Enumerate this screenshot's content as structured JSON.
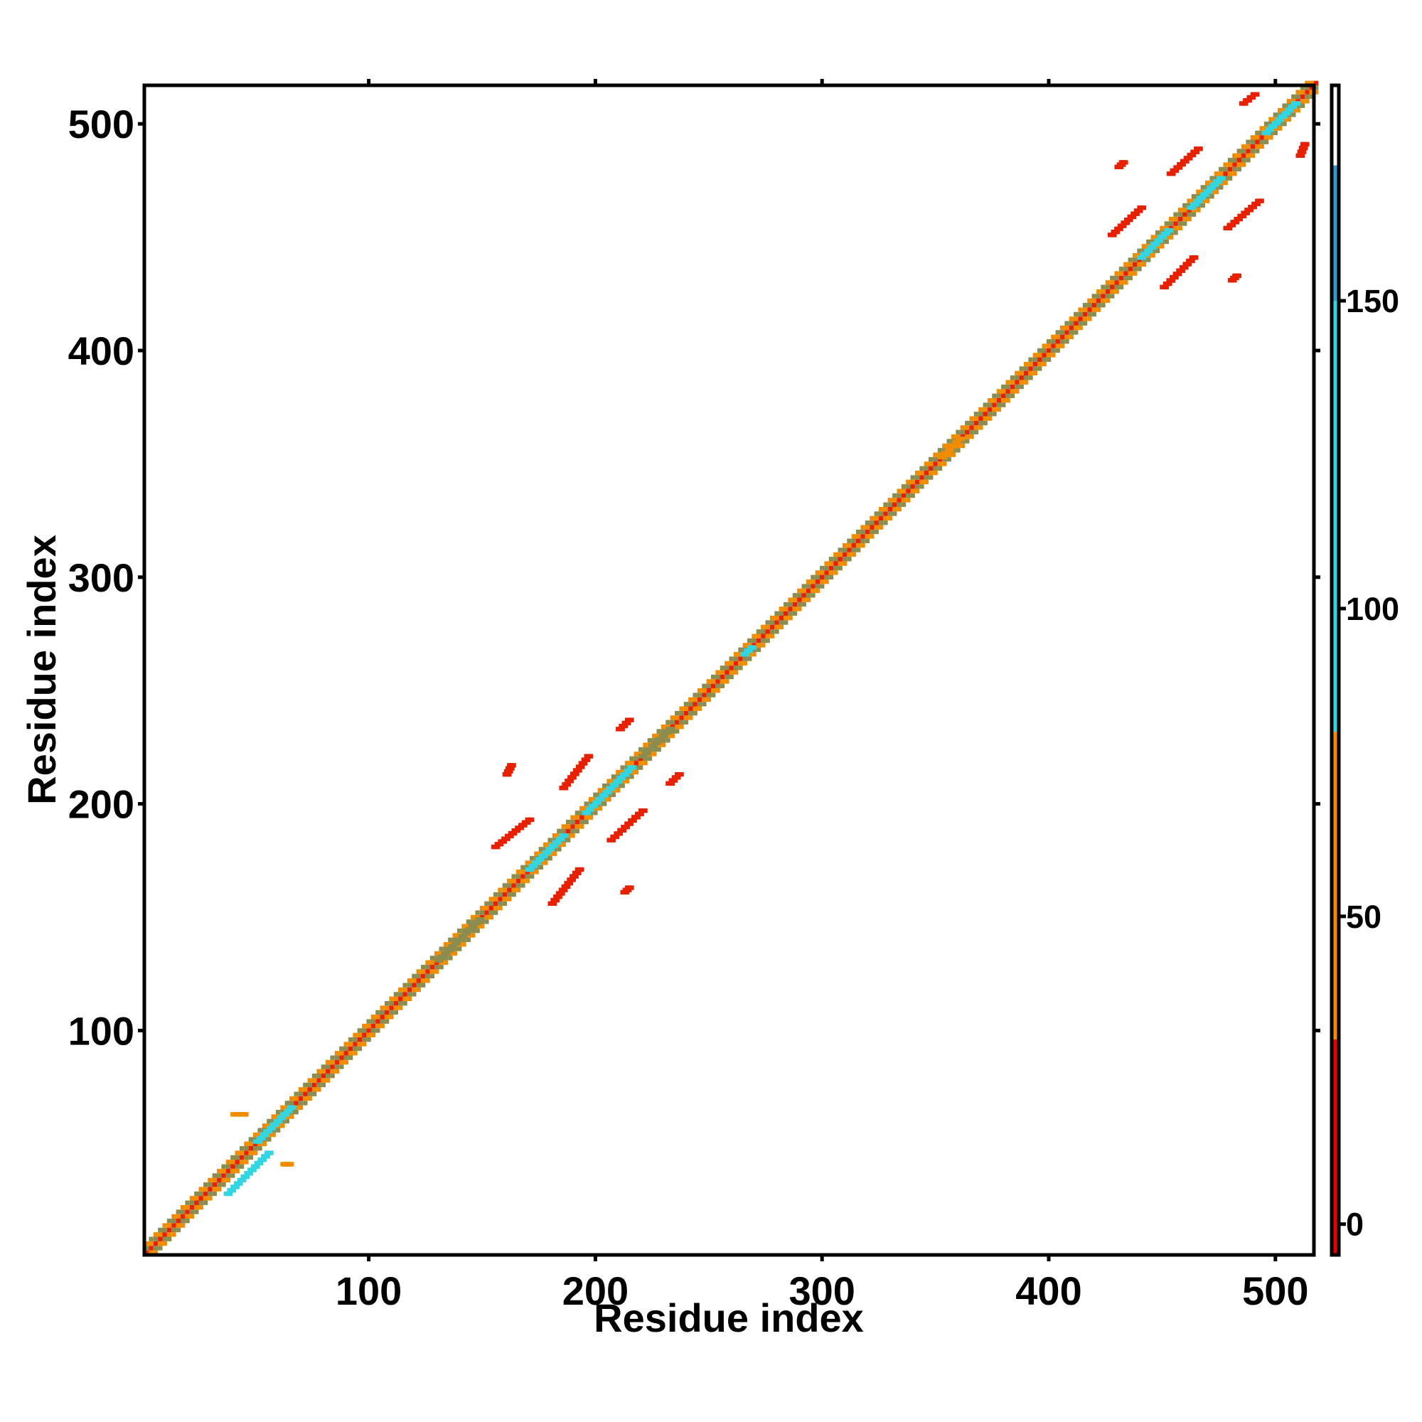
{
  "chart_data": {
    "type": "heatmap",
    "title": "",
    "xlabel": "Residue index",
    "ylabel": "Residue index",
    "xlim": [
      1,
      517
    ],
    "ylim": [
      1,
      517
    ],
    "xticks": [
      100,
      200,
      300,
      400,
      500
    ],
    "yticks": [
      100,
      200,
      300,
      400,
      500
    ],
    "grid": false,
    "legend": "colorbar-right",
    "colorbar": {
      "range": [
        -5,
        185
      ],
      "ticks": [
        0,
        50,
        100,
        150
      ],
      "bands": [
        {
          "from": -5,
          "to": 30,
          "color": "#e60000"
        },
        {
          "from": 30,
          "to": 80,
          "color": "#f08c00"
        },
        {
          "from": 80,
          "to": 150,
          "color": "#33d6e0"
        },
        {
          "from": 150,
          "to": 172,
          "color": "#3399cc"
        },
        {
          "from": 172,
          "to": 185,
          "color": "#ffffff"
        }
      ]
    },
    "palette": {
      "diagonal": "#9a9a55",
      "red": "#e62000",
      "orange": "#f08c00",
      "cyan": "#33d6e0",
      "olive": "#8c8c4e"
    },
    "diagonal_band": {
      "from": 1,
      "to": 517,
      "half_width": 4
    },
    "clusters": [
      {
        "x1": 37,
        "y1": 27,
        "x2": 55,
        "y2": 45,
        "color": "cyan"
      },
      {
        "x1": 50,
        "y1": 50,
        "x2": 65,
        "y2": 65,
        "color": "cyan"
      },
      {
        "x1": 40,
        "y1": 62,
        "x2": 44,
        "y2": 62,
        "color": "orange"
      },
      {
        "x1": 62,
        "y1": 40,
        "x2": 64,
        "y2": 40,
        "color": "orange"
      },
      {
        "x1": 130,
        "y1": 130,
        "x2": 148,
        "y2": 148,
        "color": "olive"
      },
      {
        "x1": 155,
        "y1": 180,
        "x2": 170,
        "y2": 192,
        "color": "red"
      },
      {
        "x1": 180,
        "y1": 155,
        "x2": 192,
        "y2": 170,
        "color": "red"
      },
      {
        "x1": 185,
        "y1": 206,
        "x2": 196,
        "y2": 220,
        "color": "red"
      },
      {
        "x1": 206,
        "y1": 183,
        "x2": 220,
        "y2": 196,
        "color": "red"
      },
      {
        "x1": 210,
        "y1": 232,
        "x2": 214,
        "y2": 236,
        "color": "red"
      },
      {
        "x1": 232,
        "y1": 208,
        "x2": 236,
        "y2": 212,
        "color": "red"
      },
      {
        "x1": 160,
        "y1": 212,
        "x2": 162,
        "y2": 216,
        "color": "red"
      },
      {
        "x1": 212,
        "y1": 160,
        "x2": 214,
        "y2": 162,
        "color": "red"
      },
      {
        "x1": 170,
        "y1": 170,
        "x2": 185,
        "y2": 185,
        "color": "cyan"
      },
      {
        "x1": 195,
        "y1": 195,
        "x2": 215,
        "y2": 215,
        "color": "cyan"
      },
      {
        "x1": 220,
        "y1": 220,
        "x2": 232,
        "y2": 232,
        "color": "olive"
      },
      {
        "x1": 265,
        "y1": 265,
        "x2": 268,
        "y2": 268,
        "color": "cyan"
      },
      {
        "x1": 352,
        "y1": 352,
        "x2": 360,
        "y2": 360,
        "color": "orange"
      },
      {
        "x1": 427,
        "y1": 450,
        "x2": 440,
        "y2": 462,
        "color": "red"
      },
      {
        "x1": 450,
        "y1": 427,
        "x2": 463,
        "y2": 440,
        "color": "red"
      },
      {
        "x1": 453,
        "y1": 477,
        "x2": 465,
        "y2": 488,
        "color": "red"
      },
      {
        "x1": 478,
        "y1": 453,
        "x2": 492,
        "y2": 465,
        "color": "red"
      },
      {
        "x1": 485,
        "y1": 508,
        "x2": 490,
        "y2": 512,
        "color": "red"
      },
      {
        "x1": 510,
        "y1": 485,
        "x2": 512,
        "y2": 490,
        "color": "red"
      },
      {
        "x1": 430,
        "y1": 480,
        "x2": 432,
        "y2": 482,
        "color": "red"
      },
      {
        "x1": 480,
        "y1": 430,
        "x2": 482,
        "y2": 432,
        "color": "red"
      },
      {
        "x1": 440,
        "y1": 440,
        "x2": 452,
        "y2": 452,
        "color": "cyan"
      },
      {
        "x1": 462,
        "y1": 462,
        "x2": 475,
        "y2": 475,
        "color": "cyan"
      },
      {
        "x1": 495,
        "y1": 495,
        "x2": 508,
        "y2": 508,
        "color": "cyan"
      }
    ]
  }
}
